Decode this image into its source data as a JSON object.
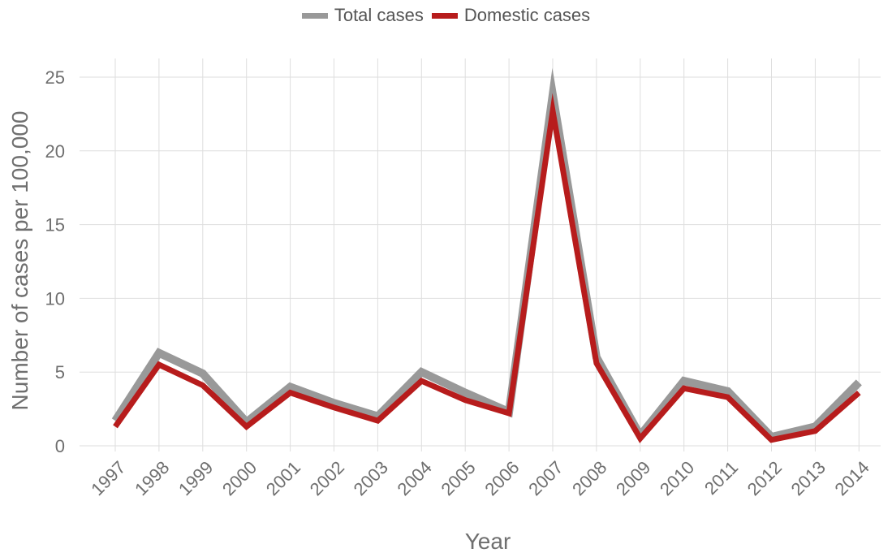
{
  "chart_data": {
    "type": "line",
    "x": [
      "1997",
      "1998",
      "1999",
      "2000",
      "2001",
      "2002",
      "2003",
      "2004",
      "2005",
      "2006",
      "2007",
      "2008",
      "2009",
      "2010",
      "2011",
      "2012",
      "2013",
      "2014"
    ],
    "series": [
      {
        "name": "Total cases",
        "color": "#999999",
        "values": [
          1.7,
          6.3,
          4.9,
          1.6,
          4.0,
          2.9,
          2.0,
          5.0,
          3.6,
          2.3,
          23.8,
          6.0,
          0.7,
          4.4,
          3.7,
          0.6,
          1.3,
          4.3
        ]
      },
      {
        "name": "Domestic cases",
        "color": "#b71c1c",
        "values": [
          1.3,
          5.5,
          4.1,
          1.3,
          3.6,
          2.6,
          1.7,
          4.4,
          3.1,
          2.2,
          22.7,
          5.6,
          0.5,
          3.9,
          3.3,
          0.4,
          1.0,
          3.6
        ]
      }
    ],
    "xlabel": "Year",
    "ylabel": "Number of cases per 100,000",
    "ylim": [
      0,
      25
    ],
    "yticks": [
      "0",
      "5",
      "10",
      "15",
      "20",
      "25"
    ],
    "grid": true,
    "legend_position": "top-center"
  }
}
